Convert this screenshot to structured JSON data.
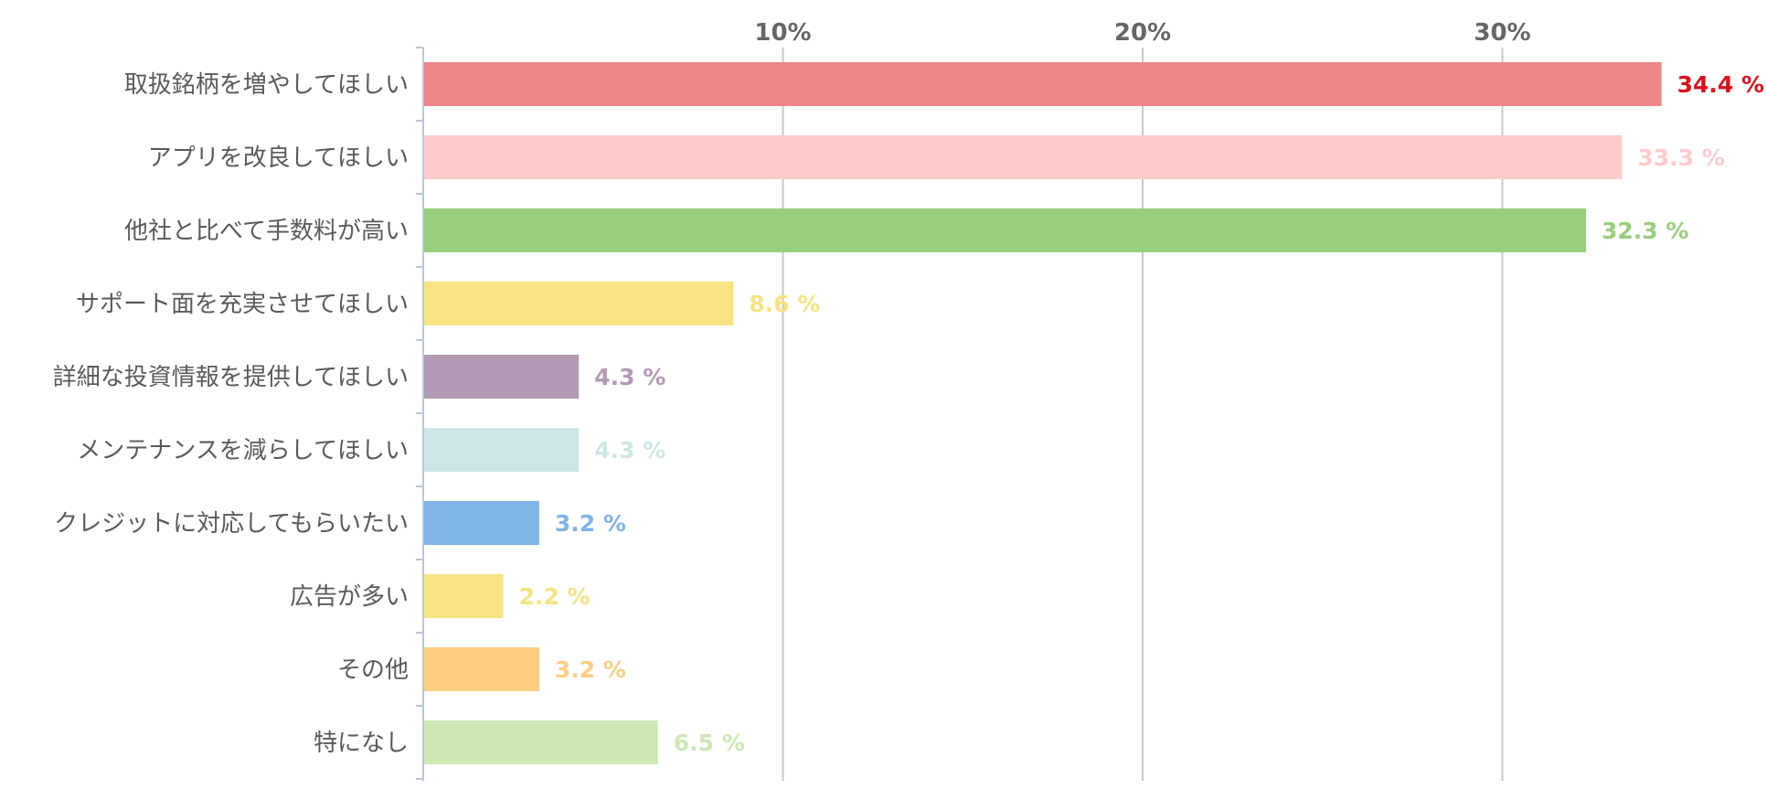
{
  "chart_data": {
    "type": "bar",
    "orientation": "horizontal",
    "title": "",
    "xlabel": "",
    "ylabel": "",
    "xlim": [
      0,
      37
    ],
    "grid": true,
    "tick_values": [
      10,
      20,
      30
    ],
    "tick_labels": [
      "10%",
      "20%",
      "30%"
    ],
    "categories": [
      "取扱銘柄を増やしてほしい",
      "アプリを改良してほしい",
      "他社と比べて手数料が高い",
      "サポート面を充実させてほしい",
      "詳細な投資情報を提供してほしい",
      "メンテナンスを減らしてほしい",
      "クレジットに対応してもらいたい",
      "広告が多い",
      "その他",
      "特になし"
    ],
    "values": [
      34.4,
      33.3,
      32.3,
      8.6,
      4.3,
      4.3,
      3.2,
      2.2,
      3.2,
      6.5
    ],
    "value_labels": [
      "34.4 %",
      "33.3 %",
      "32.3 %",
      "8.6 %",
      "4.3 %",
      "4.3 %",
      "3.2 %",
      "2.2 %",
      "3.2 %",
      "6.5 %"
    ],
    "bar_colors": [
      "#ee868a",
      "#ffcaca",
      "#99ce7e",
      "#f8e382",
      "#b29ab4",
      "#cce6e6",
      "#80b3e6",
      "#f8e382",
      "#fecd80",
      "#cce9b5"
    ],
    "label_colors": [
      "#d9121c",
      "#ffcaca",
      "#99ce7e",
      "#f8e382",
      "#b29ab4",
      "#cce6e6",
      "#80b3e6",
      "#f8e382",
      "#fecd80",
      "#cce9b5"
    ]
  }
}
